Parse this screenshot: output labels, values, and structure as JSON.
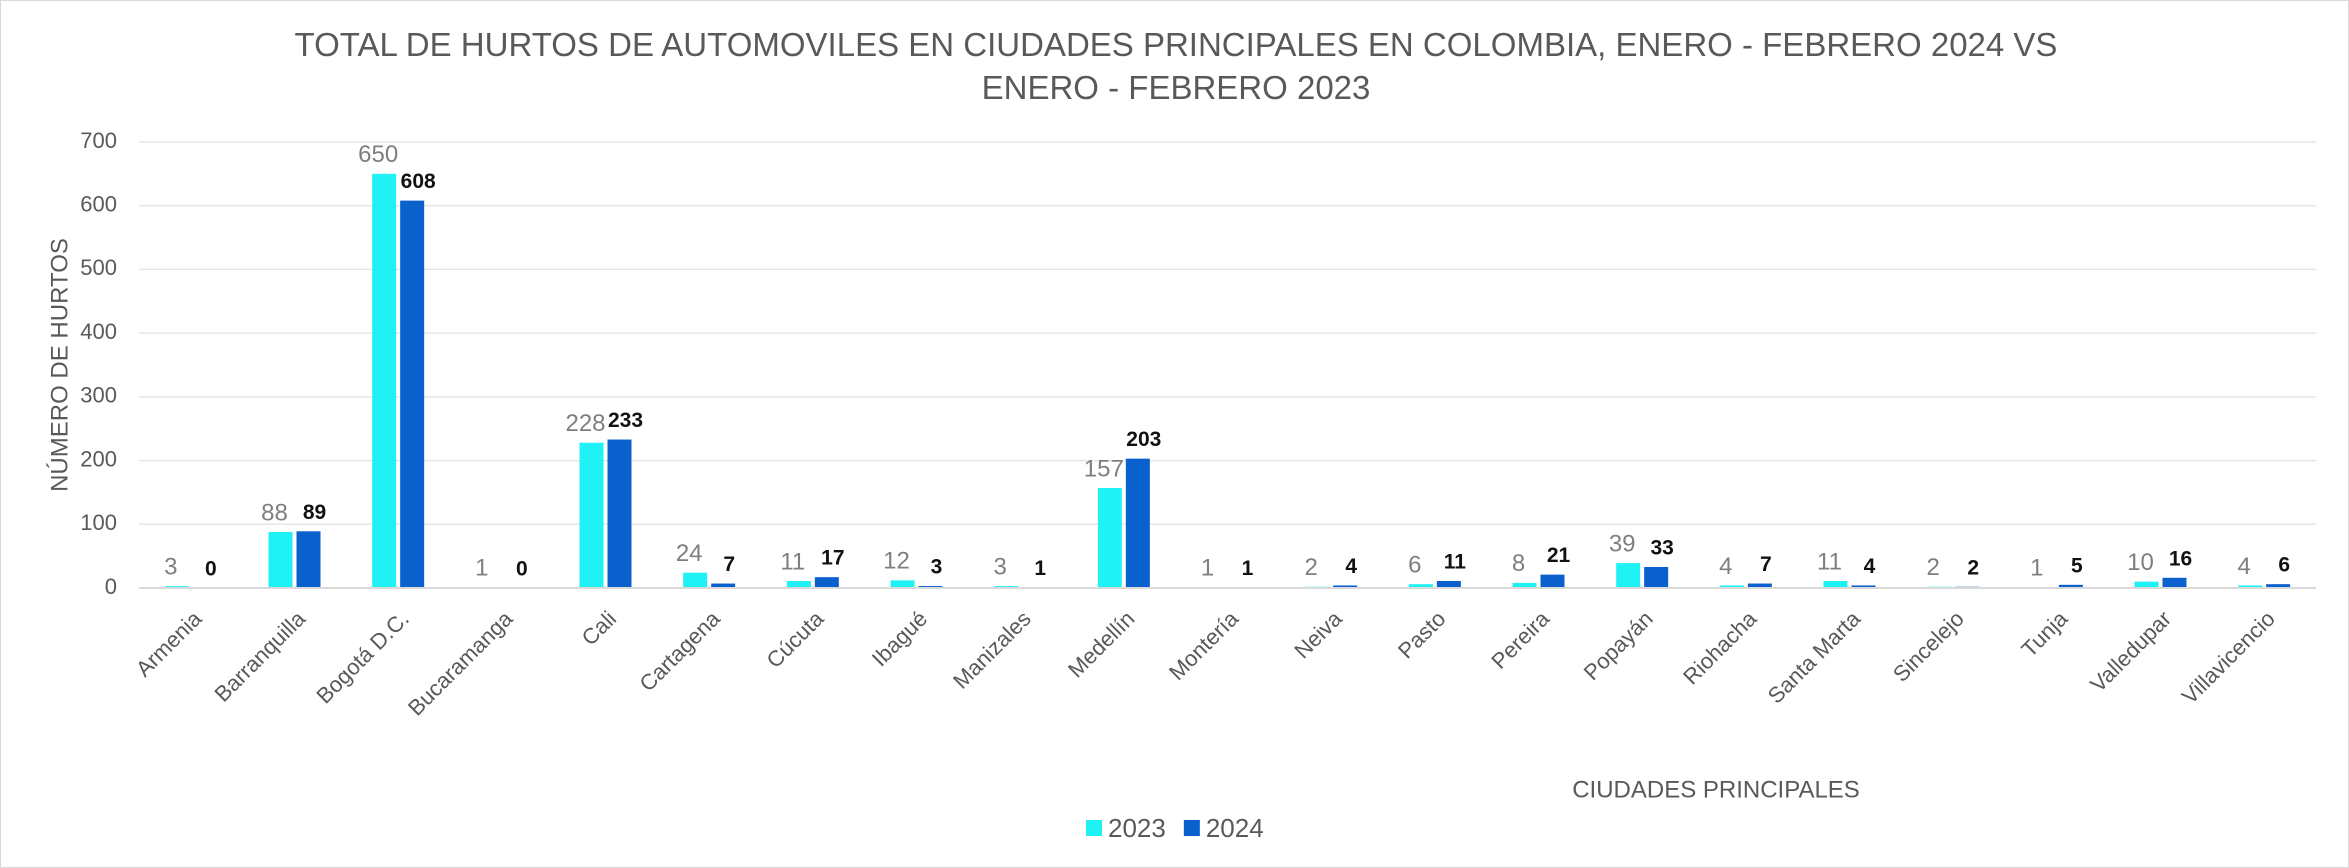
{
  "chart_data": {
    "type": "bar",
    "title": "TOTAL DE HURTOS DE AUTOMOVILES EN CIUDADES PRINCIPALES EN COLOMBIA, ENERO - FEBRERO 2024 VS ENERO - FEBRERO 2023",
    "x_label": "CIUDADES PRINCIPALES",
    "y_label": "NÚMERO DE HURTOS",
    "categories": [
      "Armenia",
      "Barranquilla",
      "Bogotá D.C.",
      "Bucaramanga",
      "Cali",
      "Cartagena",
      "Cúcuta",
      "Ibagué",
      "Manizales",
      "Medellín",
      "Montería",
      "Neiva",
      "Pasto",
      "Pereira",
      "Popayán",
      "Riohacha",
      "Santa Marta",
      "Sincelejo",
      "Tunja",
      "Valledupar",
      "Villavicencio"
    ],
    "series": [
      {
        "name": "2023",
        "color": "#1ff2f5",
        "values": [
          3,
          88,
          650,
          1,
          228,
          24,
          11,
          12,
          3,
          157,
          1,
          2,
          6,
          8,
          39,
          4,
          11,
          2,
          1,
          10,
          4
        ]
      },
      {
        "name": "2024",
        "color": "#0a60cc",
        "values": [
          0,
          89,
          608,
          0,
          233,
          7,
          17,
          3,
          1,
          203,
          1,
          4,
          11,
          21,
          33,
          7,
          4,
          2,
          5,
          16,
          6
        ]
      }
    ],
    "ylim": [
      0,
      700
    ],
    "yticks": [
      0,
      100,
      200,
      300,
      400,
      500,
      600,
      700
    ],
    "grid": true,
    "legend": "bottom"
  }
}
